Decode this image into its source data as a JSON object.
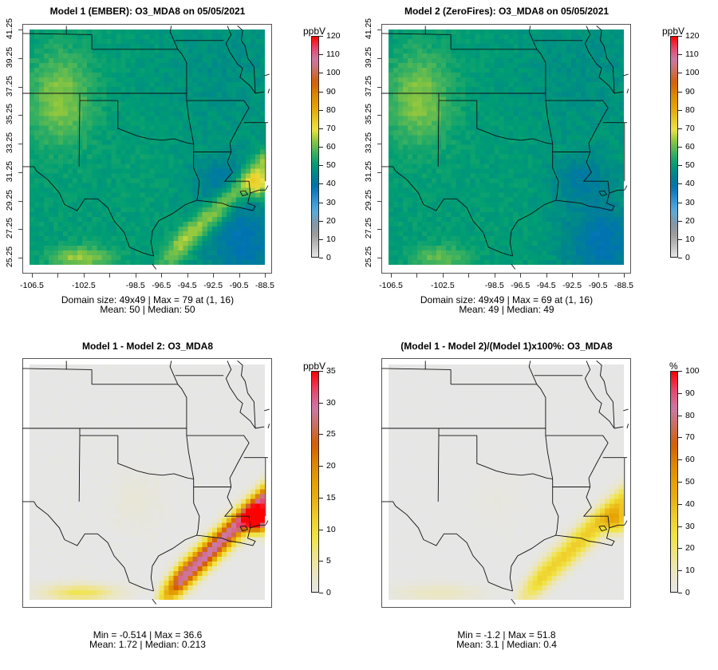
{
  "chart_data": [
    {
      "type": "heatmap",
      "title": "Model 1 (EMBER): O3_MDA8 on 05/05/2021",
      "variable": "O3_MDA8",
      "date": "05/05/2021",
      "units": "ppbV",
      "colorbar": {
        "label": "ppbV",
        "ticks": [
          0,
          10,
          20,
          30,
          40,
          50,
          60,
          70,
          80,
          90,
          100,
          110,
          120
        ],
        "range": [
          0,
          120
        ],
        "palette": "full"
      },
      "x_ticks": [
        -106.5,
        -104.5,
        -102.5,
        -100.5,
        -98.5,
        -96.5,
        -94.5,
        -92.5,
        -90.5,
        -88.5
      ],
      "x_tick_labels": [
        "-106.5",
        "",
        "-102.5",
        "",
        "-98.5",
        "-96.5",
        "-94.5",
        "-92.5",
        "-90.5",
        "-88.5"
      ],
      "y_tick_labels": [
        "25.25",
        "27.25",
        "29.25",
        "31.25",
        "33.25",
        "35.25",
        "37.25",
        "39.25",
        "41.25"
      ],
      "xlim": [
        -107.2,
        -88.2
      ],
      "ylim": [
        25.0,
        41.5
      ],
      "grid_size": [
        49,
        49
      ],
      "stats_line1": "Domain size: 49x49 | Max = 79 at (1, 16)",
      "stats_line2": "Mean: 50 |  Median: 50",
      "stats": {
        "max": 79,
        "mean": 50,
        "median": 50,
        "max_at": "(1, 16)"
      },
      "field": "model1",
      "show_axes": true
    },
    {
      "type": "heatmap",
      "title": "Model 2 (ZeroFires): O3_MDA8 on 05/05/2021",
      "variable": "O3_MDA8",
      "date": "05/05/2021",
      "units": "ppbV",
      "colorbar": {
        "label": "ppbV",
        "ticks": [
          0,
          10,
          20,
          30,
          40,
          50,
          60,
          70,
          80,
          90,
          100,
          110,
          120
        ],
        "range": [
          0,
          120
        ],
        "palette": "full"
      },
      "x_ticks": [
        -106.5,
        -104.5,
        -102.5,
        -100.5,
        -98.5,
        -96.5,
        -94.5,
        -92.5,
        -90.5,
        -88.5
      ],
      "x_tick_labels": [
        "-106.5",
        "",
        "-102.5",
        "",
        "-98.5",
        "-96.5",
        "-94.5",
        "-92.5",
        "-90.5",
        "-88.5"
      ],
      "y_tick_labels": [
        "25.25",
        "27.25",
        "29.25",
        "31.25",
        "33.25",
        "35.25",
        "37.25",
        "39.25",
        "41.25"
      ],
      "xlim": [
        -107.2,
        -88.2
      ],
      "ylim": [
        25.0,
        41.5
      ],
      "grid_size": [
        49,
        49
      ],
      "stats_line1": "Domain size: 49x49 | Max = 69 at (1, 16)",
      "stats_line2": "Mean: 49 |  Median: 49",
      "stats": {
        "max": 69,
        "mean": 49,
        "median": 49,
        "max_at": "(1, 16)"
      },
      "field": "model2",
      "show_axes": true
    },
    {
      "type": "heatmap",
      "title": "Model 1 - Model 2: O3_MDA8",
      "variable": "O3_MDA8",
      "units": "ppbV",
      "colorbar": {
        "label": "ppbV",
        "ticks": [
          0,
          5,
          10,
          15,
          20,
          25,
          30,
          35
        ],
        "range": [
          0,
          35
        ],
        "palette": "warm"
      },
      "stats_line1": "Min = -0.514 | Max = 36.6",
      "stats_line2": "Mean: 1.72 |  Median: 0.213",
      "stats": {
        "min": -0.514,
        "max": 36.6,
        "mean": 1.72,
        "median": 0.213
      },
      "field": "diff",
      "show_axes": false
    },
    {
      "type": "heatmap",
      "title": "(Model 1 - Model 2)/(Model 1)x100%: O3_MDA8",
      "variable": "O3_MDA8",
      "units": "%",
      "colorbar": {
        "label": "%",
        "ticks": [
          0,
          10,
          20,
          30,
          40,
          50,
          60,
          70,
          80,
          90,
          100
        ],
        "range": [
          0,
          100
        ],
        "palette": "warm"
      },
      "stats_line1": "Min = -1.2 | Max = 51.8",
      "stats_line2": "Mean: 3.1 | Median: 0.4",
      "stats": {
        "min": -1.2,
        "max": 51.8,
        "mean": 3.1,
        "median": 0.4
      },
      "field": "pct",
      "show_axes": false
    }
  ],
  "palettes": {
    "full": [
      "#e6e6e6",
      "#bdbdbd",
      "#9a9a9a",
      "#7f98ac",
      "#56aee0",
      "#2f8fd0",
      "#0072b2",
      "#00838f",
      "#009e73",
      "#3fb25e",
      "#8cc63f",
      "#f0e442",
      "#e6c21e",
      "#e69f00",
      "#db8a00",
      "#d55e00",
      "#cc6e5a",
      "#cc79a7",
      "#e8456a",
      "#ff0000"
    ],
    "warm": [
      "#e6e6e6",
      "#ebe6c2",
      "#efe48a",
      "#f0e442",
      "#efcf2c",
      "#e9b212",
      "#e69f00",
      "#de8600",
      "#d55e00",
      "#cc6e5a",
      "#cc79a7",
      "#e8456a",
      "#ff0000"
    ]
  }
}
